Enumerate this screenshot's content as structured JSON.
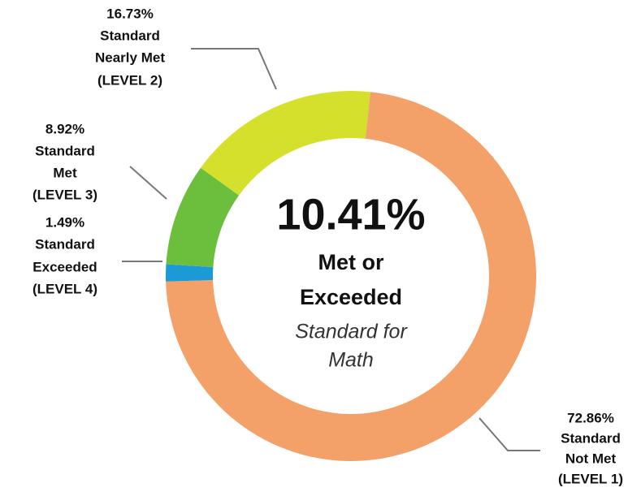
{
  "chart_data": {
    "type": "donut",
    "categories": [
      [
        "Standard",
        "Not Met",
        "(LEVEL 1)"
      ],
      [
        "Standard",
        "Exceeded",
        "(LEVEL 4)"
      ],
      [
        "Standard",
        "Met",
        "(LEVEL 3)"
      ],
      [
        "Standard",
        "Nearly Met",
        "(LEVEL 2)"
      ]
    ],
    "values": [
      72.86,
      1.49,
      8.92,
      16.73
    ],
    "value_labels": [
      "72.86%",
      "1.49%",
      "8.92%",
      "16.73%"
    ],
    "colors": [
      "#f4a069",
      "#1b9ad6",
      "#6cbf3c",
      "#d4e02c"
    ],
    "center_text": [
      "10.41%",
      "Met or",
      "Exceeded",
      "Standard for",
      "Math"
    ]
  }
}
